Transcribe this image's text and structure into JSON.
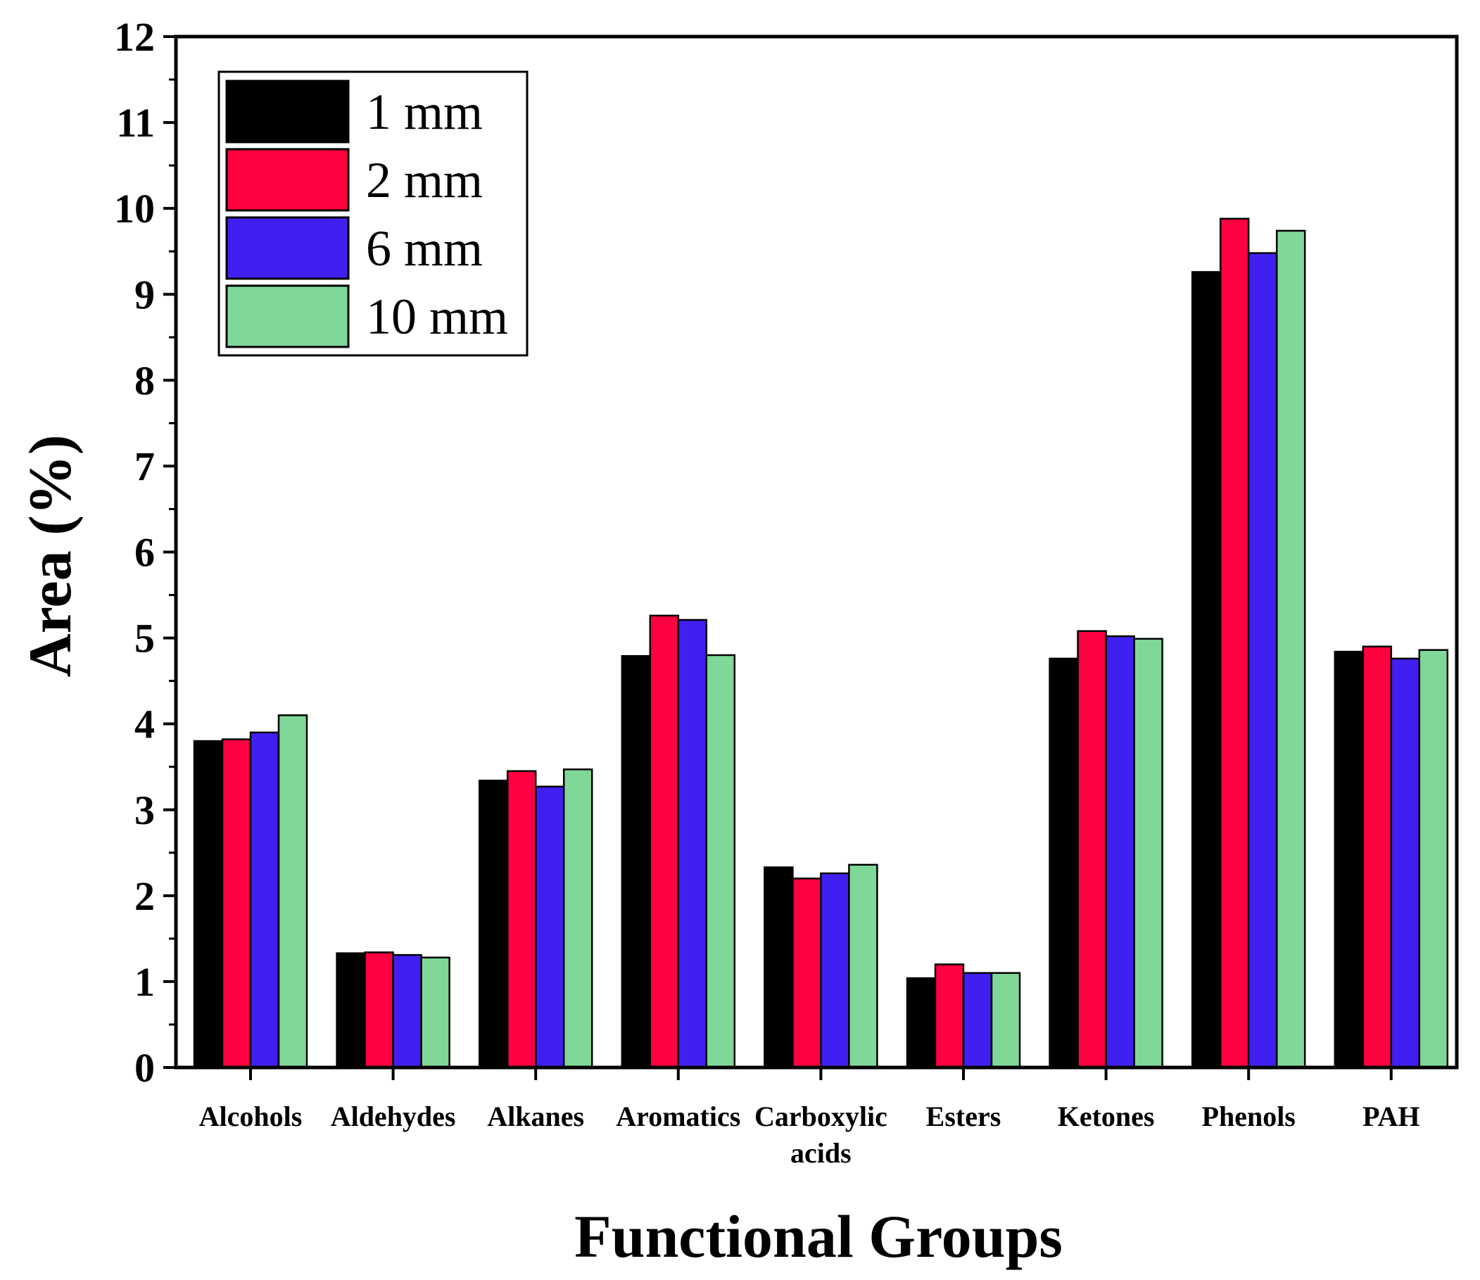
{
  "chart_data": {
    "type": "bar",
    "title": "",
    "xlabel": "Functional Groups",
    "ylabel": "Area (%)",
    "ylim": [
      0,
      12
    ],
    "yticks": [
      "0",
      "1",
      "2",
      "3",
      "4",
      "5",
      "6",
      "7",
      "8",
      "9",
      "10",
      "11",
      "12"
    ],
    "categories": [
      [
        "Alcohols"
      ],
      [
        "Aldehydes"
      ],
      [
        "Alkanes"
      ],
      [
        "Aromatics"
      ],
      [
        "Carboxylic",
        "acids"
      ],
      [
        "Esters"
      ],
      [
        "Ketones"
      ],
      [
        "Phenols"
      ],
      [
        "PAH"
      ]
    ],
    "series": [
      {
        "name": "1 mm",
        "color": "#000000",
        "values": [
          3.8,
          1.33,
          3.34,
          4.79,
          2.33,
          1.04,
          4.76,
          9.26,
          4.84
        ]
      },
      {
        "name": "2 mm",
        "color": "#ff0040",
        "values": [
          3.82,
          1.34,
          3.45,
          5.26,
          2.2,
          1.2,
          5.08,
          9.88,
          4.9
        ]
      },
      {
        "name": "6 mm",
        "color": "#4020f0",
        "values": [
          3.9,
          1.31,
          3.27,
          5.21,
          2.26,
          1.1,
          5.02,
          9.48,
          4.76
        ]
      },
      {
        "name": "10 mm",
        "color": "#80d898",
        "values": [
          4.1,
          1.28,
          3.47,
          4.8,
          2.36,
          1.1,
          4.99,
          9.74,
          4.86
        ]
      }
    ],
    "legend_position": "top-left",
    "grid": false
  }
}
